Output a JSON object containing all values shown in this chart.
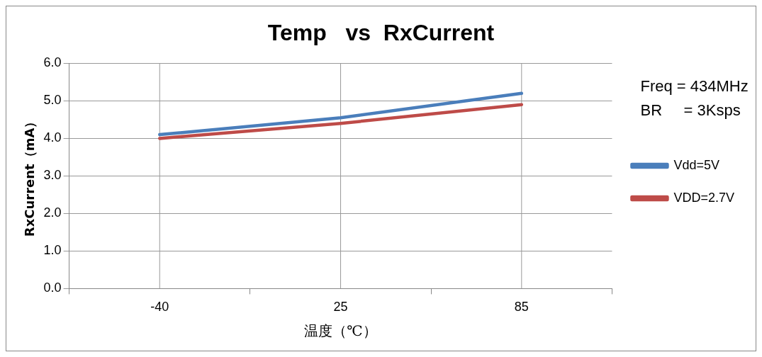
{
  "chart_data": {
    "type": "line",
    "title": "Temp   vs  RxCurrent",
    "xlabel": "温度（℃）",
    "ylabel": "RxCurrent（mA）",
    "categories": [
      "-40",
      "25",
      "85"
    ],
    "series": [
      {
        "name": "Vdd=5V",
        "color": "#4a7ebb",
        "values": [
          4.1,
          4.55,
          5.2
        ]
      },
      {
        "name": "VDD=2.7V",
        "color": "#be4b48",
        "values": [
          4.0,
          4.4,
          4.9
        ]
      }
    ],
    "ylim": [
      0,
      6
    ],
    "yticks": [
      {
        "value": 0,
        "label": "0.0"
      },
      {
        "value": 1,
        "label": "1.0"
      },
      {
        "value": 2,
        "label": "2.0"
      },
      {
        "value": 3,
        "label": "3.0"
      },
      {
        "value": 4,
        "label": "4.0"
      },
      {
        "value": 5,
        "label": "5.0"
      },
      {
        "value": 6,
        "label": "6.0"
      }
    ],
    "grid": true,
    "legend": "right",
    "marker": "none",
    "line_style": "solid",
    "annotations": [
      "Freq = 434MHz",
      "BR     = 3Ksps"
    ]
  }
}
